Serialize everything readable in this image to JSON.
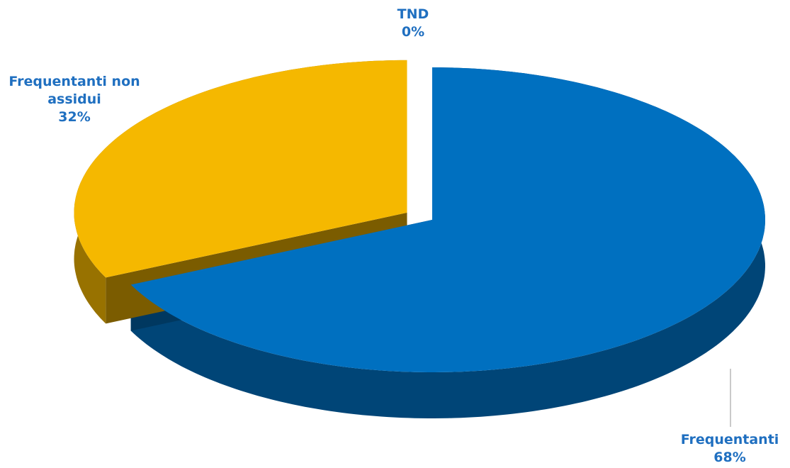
{
  "chart_data": {
    "type": "pie",
    "categories": [
      "Frequentanti",
      "Frequentanti non assidui",
      "TND"
    ],
    "values": [
      68,
      32,
      0
    ],
    "value_labels": [
      "68%",
      "32%",
      "0%"
    ],
    "colors": [
      "#0070c0",
      "#f5b800",
      "#7f7f7f"
    ]
  }
}
